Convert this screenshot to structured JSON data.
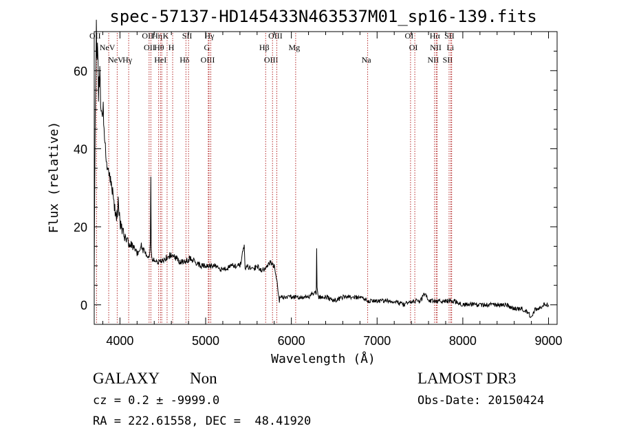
{
  "colors": {
    "spectrum": "#000000",
    "lines": "#b22222",
    "axis": "#000000"
  },
  "footer": {
    "class_label": "GALAXY",
    "subclass_label": "Non",
    "survey_label": "LAMOST DR3",
    "cz_text": "cz = 0.2 ± -9999.0",
    "obs_date_text": "Obs-Date: 20150424",
    "radec_text": "RA = 222.61558, DEC =  48.41920"
  },
  "chart_data": {
    "type": "line",
    "title": "spec-57137-HD145433N463537M01_sp16-139.fits",
    "xlabel": "Wavelength (Å)",
    "ylabel": "Flux (relative)",
    "xlim": [
      3700,
      9100
    ],
    "ylim": [
      -5,
      70
    ],
    "xticks": [
      4000,
      5000,
      6000,
      7000,
      8000,
      9000
    ],
    "yticks": [
      0,
      20,
      40,
      60
    ],
    "grid": false,
    "series": [
      {
        "x": [
          3700,
          3712,
          3725,
          3738,
          3750,
          3765,
          3780,
          3800,
          3820,
          3840,
          3860,
          3880,
          3900,
          3920,
          3940,
          3960,
          3980,
          4000,
          4030,
          4060,
          4100,
          4150,
          4200,
          4250,
          4300,
          4340,
          4355,
          4360,
          4365,
          4380,
          4420,
          4480,
          4540,
          4600,
          4650,
          4700,
          4760,
          4820,
          4880,
          4940,
          5000,
          5100,
          5200,
          5300,
          5400,
          5450,
          5460,
          5480,
          5550,
          5600,
          5650,
          5700,
          5750,
          5780,
          5800,
          5820,
          5840,
          5850,
          5860,
          5870,
          5900,
          6000,
          6100,
          6200,
          6250,
          6290,
          6295,
          6300,
          6310,
          6320,
          6400,
          6500,
          6600,
          6700,
          6800,
          6900,
          7000,
          7100,
          7200,
          7300,
          7400,
          7500,
          7560,
          7600,
          7700,
          7800,
          7900,
          8000,
          8100,
          8200,
          8300,
          8400,
          8500,
          8600,
          8700,
          8750,
          8800,
          8850,
          8900,
          8950,
          9000
        ],
        "y": [
          8,
          48,
          70,
          65,
          56,
          58,
          47,
          52,
          42,
          38,
          35,
          33,
          30,
          28,
          25,
          22,
          26,
          21,
          19,
          17,
          16,
          15,
          13,
          15,
          13,
          12,
          16,
          35,
          14,
          12,
          11,
          11,
          12,
          13,
          12,
          11,
          11,
          12,
          11,
          10,
          10,
          10,
          9,
          10,
          10,
          15,
          9,
          10,
          9,
          10,
          9,
          9,
          11,
          10,
          10,
          7,
          5,
          2,
          1,
          2,
          2,
          2,
          2,
          2,
          3,
          3,
          14,
          5,
          3,
          2,
          2,
          1,
          2,
          2,
          2,
          1,
          1,
          1,
          1,
          0,
          1,
          1,
          3,
          1,
          1,
          1,
          1,
          0,
          0,
          0,
          0,
          0,
          0,
          -1,
          -1,
          -2,
          -3,
          -1,
          -1,
          0,
          0
        ]
      }
    ],
    "line_labels": [
      {
        "x": 3727,
        "label": "OII"
      },
      {
        "x": 3869,
        "label": "NeV"
      },
      {
        "x": 3968,
        "label": "NeV"
      },
      {
        "x": 4340,
        "label": "OII"
      },
      {
        "x": 4361,
        "label": "OII"
      },
      {
        "x": 4102,
        "label": "Hγ"
      },
      {
        "x": 4451,
        "label": "Hη"
      },
      {
        "x": 4473,
        "label": "Hθ"
      },
      {
        "x": 4488,
        "label": "HeI"
      },
      {
        "x": 4550,
        "label": "K"
      },
      {
        "x": 4615,
        "label": "H"
      },
      {
        "x": 4770,
        "label": "Hδ"
      },
      {
        "x": 4800,
        "label": "SII"
      },
      {
        "x": 5031,
        "label": "G"
      },
      {
        "x": 5040,
        "label": "OIII"
      },
      {
        "x": 5060,
        "label": "Hγ"
      },
      {
        "x": 5700,
        "label": "Hβ"
      },
      {
        "x": 5780,
        "label": "OIII"
      },
      {
        "x": 5830,
        "label": "OIII"
      },
      {
        "x": 6050,
        "label": "Mg"
      },
      {
        "x": 6890,
        "label": "Na"
      },
      {
        "x": 7390,
        "label": "OI"
      },
      {
        "x": 7440,
        "label": "OI"
      },
      {
        "x": 7670,
        "label": "NII"
      },
      {
        "x": 7690,
        "label": "Hα"
      },
      {
        "x": 7700,
        "label": "NII"
      },
      {
        "x": 7840,
        "label": "SII"
      },
      {
        "x": 7860,
        "label": "SII"
      },
      {
        "x": 7870,
        "label": "Li"
      }
    ]
  }
}
